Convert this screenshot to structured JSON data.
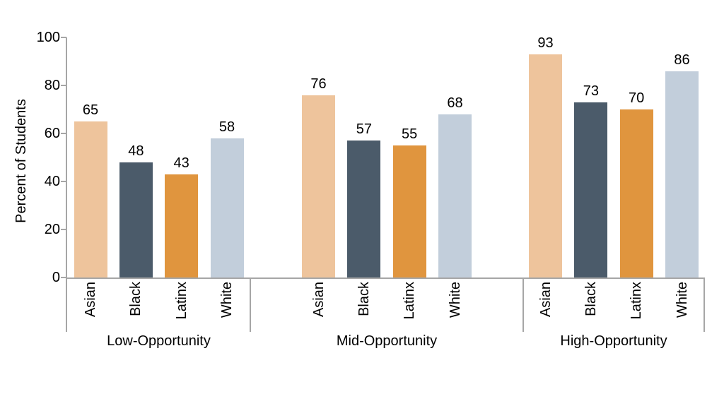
{
  "chart_data": {
    "type": "bar",
    "title": "",
    "ylabel": "Percent of Students",
    "ylim": [
      0,
      100
    ],
    "yticks": [
      0,
      20,
      40,
      60,
      80,
      100
    ],
    "grid": false,
    "legend": "none",
    "bar_value_labels_shown": true,
    "categories": [
      "Low-Opportunity",
      "Mid-Opportunity",
      "High-Opportunity"
    ],
    "series": [
      {
        "name": "Asian",
        "color": "#eec49c",
        "values": [
          65,
          76,
          93
        ]
      },
      {
        "name": "Black",
        "color": "#4b5b6a",
        "values": [
          48,
          57,
          73
        ]
      },
      {
        "name": "Latinx",
        "color": "#e0953e",
        "values": [
          43,
          55,
          70
        ]
      },
      {
        "name": "White",
        "color": "#c2cedb",
        "values": [
          58,
          68,
          86
        ]
      }
    ],
    "axis_color": "#a6a6a6",
    "text_color": "#000000",
    "background": "#ffffff"
  }
}
